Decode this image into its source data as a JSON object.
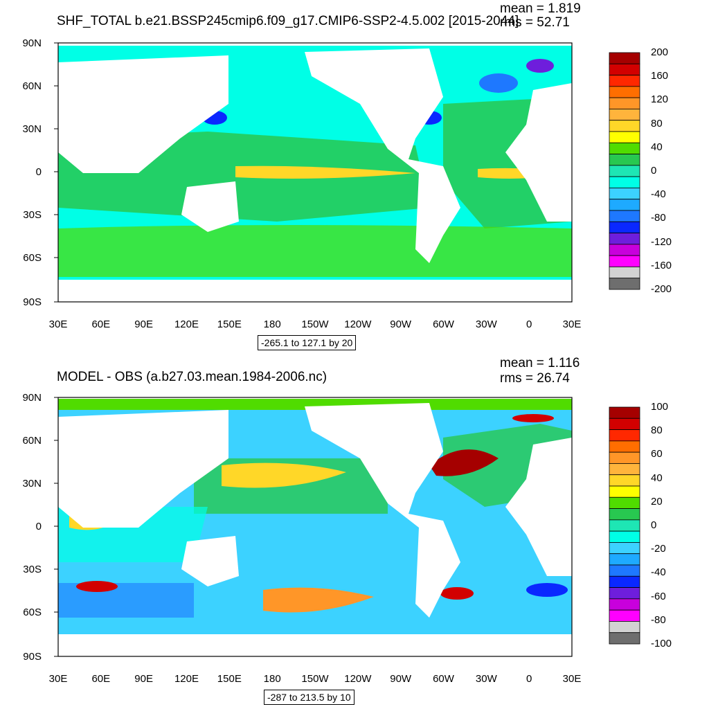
{
  "panels": [
    {
      "id": "top",
      "title": "SHF_TOTAL b.e21.BSSP245cmip6.f09_g17.CMIP6-SSP2-4.5.002 [2015-2044]",
      "mean": "mean = 1.819",
      "rms": "rms = 52.71",
      "contour_info": "-265.1 to 127.1 by 20",
      "colorbar_labels": [
        "200",
        "160",
        "120",
        "80",
        "40",
        "0",
        "-40",
        "-80",
        "-120",
        "-160",
        "-200"
      ]
    },
    {
      "id": "bottom",
      "title": "MODEL - OBS (a.b27.03.mean.1984-2006.nc)",
      "mean": "mean = 1.116",
      "rms": "rms = 26.74",
      "contour_info": "-287 to 213.5 by 10",
      "colorbar_labels": [
        "100",
        "80",
        "60",
        "40",
        "20",
        "0",
        "-20",
        "-40",
        "-60",
        "-80",
        "-100"
      ]
    }
  ],
  "lat_labels": [
    "90N",
    "60N",
    "30N",
    "0",
    "30S",
    "60S",
    "90S"
  ],
  "lon_labels": [
    "30E",
    "60E",
    "90E",
    "120E",
    "150E",
    "180",
    "150W",
    "120W",
    "90W",
    "60W",
    "30W",
    "0",
    "30E"
  ],
  "colorbar_colors": [
    "#a50000",
    "#d20000",
    "#ff2800",
    "#ff6e00",
    "#ff9628",
    "#ffb43c",
    "#ffd728",
    "#ffff00",
    "#50dc00",
    "#28c850",
    "#1ee6b4",
    "#00ffe6",
    "#3cd2ff",
    "#1eaaff",
    "#1e78ff",
    "#0a28ff",
    "#6e1edc",
    "#c800dc",
    "#ff00ff",
    "#d2d2d2",
    "#6e6e6e"
  ],
  "chart_data": [
    {
      "type": "heatmap",
      "title": "SHF_TOTAL b.e21.BSSP245cmip6.f09_g17.CMIP6-SSP2-4.5.002 [2015-2044]",
      "xlim": [
        30,
        390
      ],
      "ylim": [
        -90,
        90
      ],
      "color_levels": [
        -200,
        -160,
        -120,
        -80,
        -40,
        0,
        40,
        80,
        120,
        160,
        200
      ],
      "mean": 1.819,
      "rms": 52.71
    },
    {
      "type": "heatmap",
      "title": "MODEL - OBS (a.b27.03.mean.1984-2006.nc)",
      "xlim": [
        30,
        390
      ],
      "ylim": [
        -90,
        90
      ],
      "color_levels": [
        -100,
        -80,
        -60,
        -40,
        -20,
        0,
        20,
        40,
        60,
        80,
        100
      ],
      "mean": 1.116,
      "rms": 26.74
    }
  ]
}
